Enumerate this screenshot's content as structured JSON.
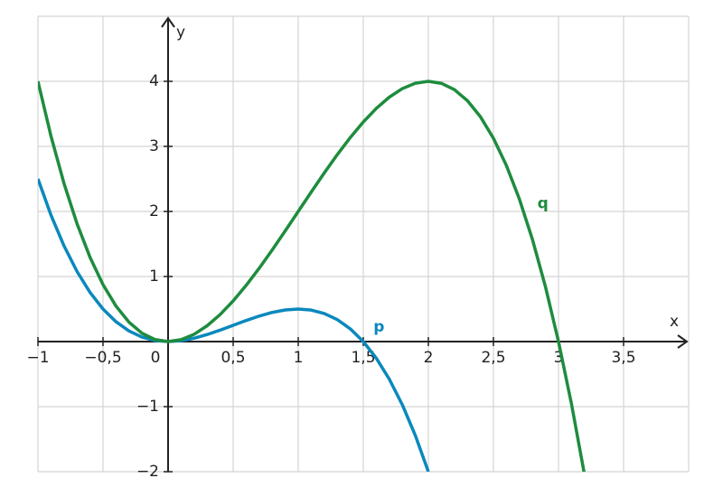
{
  "chart_data": {
    "type": "line",
    "x_label": "x",
    "y_label": "y",
    "xlim": [
      -1,
      4
    ],
    "ylim": [
      -2,
      5
    ],
    "xticks": [
      {
        "value": -1,
        "label": "−1"
      },
      {
        "value": -0.5,
        "label": "−0,5"
      },
      0,
      {
        "value": 0.5,
        "label": "0,5"
      },
      1,
      {
        "value": 1.5,
        "label": "1,5"
      },
      2,
      {
        "value": 2.5,
        "label": "2,5"
      },
      3,
      {
        "value": 3.5,
        "label": "3,5"
      }
    ],
    "yticks": [
      {
        "value": -2,
        "label": "−2"
      },
      {
        "value": -1,
        "label": "−1"
      },
      1,
      2,
      3,
      4
    ],
    "grid": true,
    "series": [
      {
        "name": "p",
        "color": "#0a88bd",
        "x": [
          -1,
          -0.9,
          -0.8,
          -0.7,
          -0.6,
          -0.5,
          -0.4,
          -0.3,
          -0.2,
          -0.1,
          0,
          0.1,
          0.2,
          0.3,
          0.4,
          0.5,
          0.6,
          0.7,
          0.8,
          0.9,
          1,
          1.1,
          1.2,
          1.3,
          1.4,
          1.5,
          1.6,
          1.7,
          1.8,
          1.9,
          2
        ],
        "values": [
          2.5,
          1.944,
          1.472,
          1.078,
          0.756,
          0.5,
          0.304,
          0.162,
          0.068,
          0.016,
          0,
          0.014,
          0.052,
          0.108,
          0.176,
          0.25,
          0.324,
          0.392,
          0.448,
          0.486,
          0.5,
          0.484,
          0.432,
          0.338,
          0.196,
          0,
          -0.256,
          -0.578,
          -0.972,
          -1.444,
          -2
        ]
      },
      {
        "name": "q",
        "color": "#1e8c3e",
        "x": [
          -1,
          -0.9,
          -0.8,
          -0.7,
          -0.6,
          -0.5,
          -0.4,
          -0.3,
          -0.2,
          -0.1,
          0,
          0.1,
          0.2,
          0.3,
          0.4,
          0.5,
          0.6,
          0.7,
          0.8,
          0.9,
          1,
          1.1,
          1.2,
          1.3,
          1.4,
          1.5,
          1.6,
          1.7,
          1.8,
          1.9,
          2,
          2.1,
          2.2,
          2.3,
          2.4,
          2.5,
          2.6,
          2.7,
          2.8,
          2.9,
          3,
          3.1,
          3.2
        ],
        "values": [
          4,
          3.159,
          2.432,
          1.813,
          1.296,
          0.875,
          0.544,
          0.297,
          0.128,
          0.031,
          0,
          0.029,
          0.112,
          0.243,
          0.416,
          0.625,
          0.864,
          1.127,
          1.408,
          1.701,
          2,
          2.299,
          2.592,
          2.873,
          3.136,
          3.375,
          3.584,
          3.757,
          3.888,
          3.971,
          4,
          3.969,
          3.872,
          3.703,
          3.456,
          3.125,
          2.704,
          2.187,
          1.568,
          0.841,
          0,
          -0.961,
          -2.048
        ]
      }
    ]
  }
}
